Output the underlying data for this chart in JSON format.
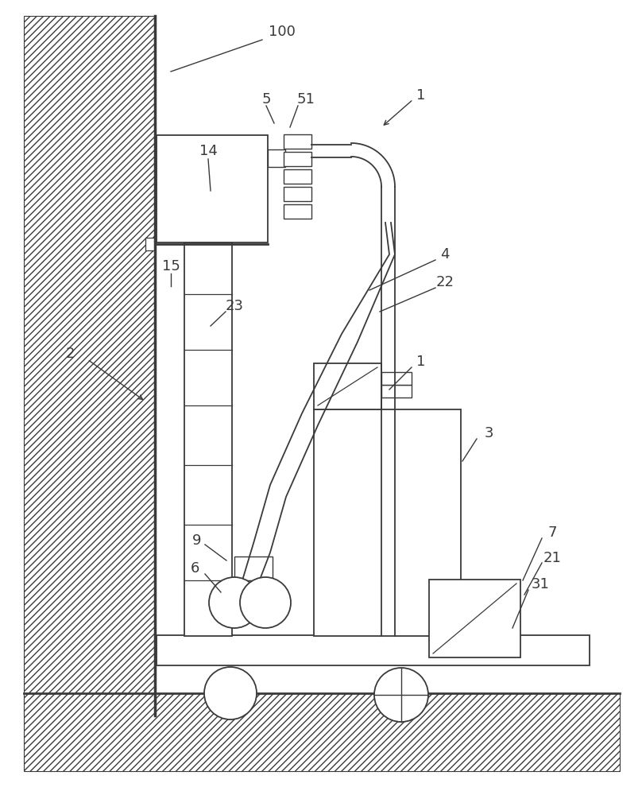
{
  "bg_color": "#ffffff",
  "lc": "#3a3a3a",
  "lw": 1.3,
  "fig_w": 8.08,
  "fig_h": 10.0,
  "xlim": [
    0,
    808
  ],
  "ylim": [
    0,
    1000
  ]
}
